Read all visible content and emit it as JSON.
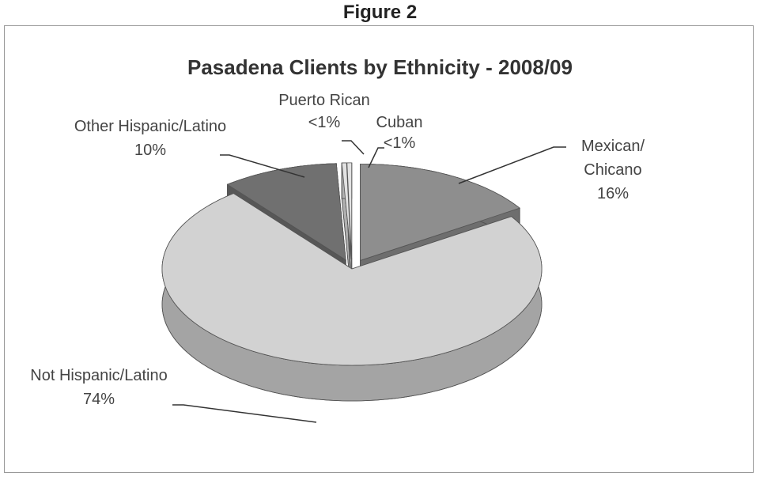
{
  "figure": "Figure 2",
  "chart_data": {
    "type": "pie3d",
    "title": "Pasadena Clients by Ethnicity - 2008/09",
    "categories": [
      "Mexican/ Chicano",
      "Not Hispanic/Latino",
      "Other Hispanic/Latino",
      "Puerto Rican",
      "Cuban"
    ],
    "values": [
      16,
      74,
      10,
      0.4,
      0.4
    ],
    "value_labels": [
      "16%",
      "74%",
      "10%",
      "<1%",
      "<1%"
    ],
    "colors": [
      "#8e8e8e",
      "#d2d2d2",
      "#707070",
      "#e2e2e2",
      "#e2e2e2"
    ],
    "exploded": [
      true,
      false,
      true,
      true,
      true
    ]
  }
}
